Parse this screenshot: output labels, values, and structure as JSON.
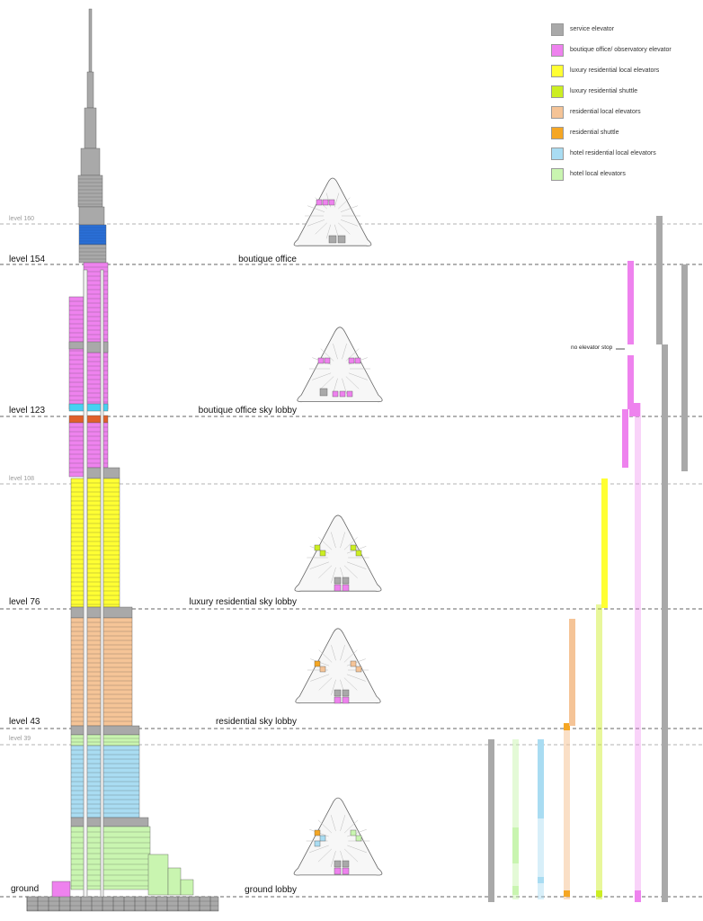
{
  "levels": {
    "l160": "level 160",
    "l154": "level 154",
    "l123": "level 123",
    "l108": "level 108",
    "l76": "level 76",
    "l43": "level 43",
    "l39": "level 39",
    "ground": "ground"
  },
  "lobbies": {
    "boutique": "boutique office",
    "boutique_sky": "boutique office sky lobby",
    "luxury_sky": "luxury residential sky lobby",
    "res_sky": "residential sky lobby",
    "ground_lobby": "ground lobby"
  },
  "annotation": "no elevator stop",
  "legend": [
    {
      "label": "service elevator",
      "color": "#a9a9a9"
    },
    {
      "label": "boutique office/ observatory elevator",
      "color": "#ee82ee"
    },
    {
      "label": "luxury residential local elevators",
      "color": "#ffff33"
    },
    {
      "label": "luxury residential shuttle",
      "color": "#ccee22"
    },
    {
      "label": "residential local elevators",
      "color": "#f5c497"
    },
    {
      "label": "residential shuttle",
      "color": "#f5a623"
    },
    {
      "label": "hotel residential local elevators",
      "color": "#a9dcf2"
    },
    {
      "label": "hotel local elevators",
      "color": "#c9f5b0"
    }
  ],
  "colors": {
    "service": "#a9a9a9",
    "boutique": "#ee82ee",
    "lux_local": "#ffff33",
    "lux_shuttle": "#ccee22",
    "res_local": "#f5c497",
    "res_shuttle": "#f5a623",
    "hotel_res": "#a9dcf2",
    "hotel_local": "#c9f5b0",
    "mech_blue": "#2a6fd6",
    "mech_red": "#e0602a",
    "mech_cyan": "#47d1f2"
  }
}
